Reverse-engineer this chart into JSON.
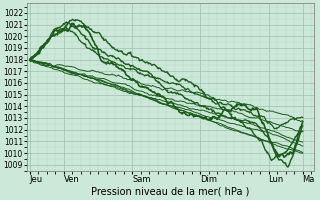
{
  "xlabel": "Pression niveau de la mer( hPa )",
  "ylim": [
    1008.5,
    1022.8
  ],
  "yticks": [
    1009,
    1010,
    1011,
    1012,
    1013,
    1014,
    1015,
    1016,
    1017,
    1018,
    1019,
    1020,
    1021,
    1022
  ],
  "xtick_labels": [
    "Jeu",
    "Ven",
    "Sam",
    "Dim",
    "Lun",
    "Ma"
  ],
  "xtick_positions": [
    0,
    24,
    72,
    120,
    168,
    192
  ],
  "xlim": [
    -2,
    200
  ],
  "bg_color": "#cbe8d8",
  "grid_major_color": "#9dbfad",
  "grid_minor_color": "#b8d8c5",
  "line_color": "#1a5c1a",
  "marker_color": "#1a5c1a"
}
